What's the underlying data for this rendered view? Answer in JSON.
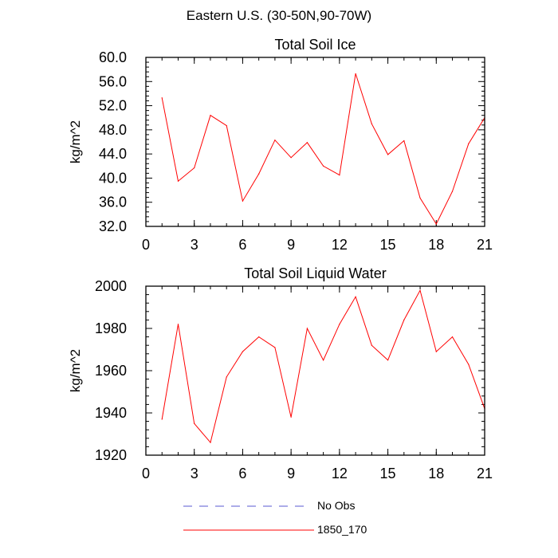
{
  "figure": {
    "main_title": "Eastern U.S. (30-50N,90-70W)"
  },
  "chart_data": [
    {
      "type": "line",
      "title": "Total Soil Ice",
      "xlabel": "",
      "ylabel": "kg/m^2",
      "xlim": [
        0,
        21
      ],
      "ylim": [
        32,
        60
      ],
      "xticks": [
        0,
        3,
        6,
        9,
        12,
        15,
        18,
        21
      ],
      "yticks": [
        32,
        36,
        40,
        44,
        48,
        52,
        56,
        60
      ],
      "ytick_decimals": 1,
      "x": [
        1,
        2,
        3,
        4,
        5,
        6,
        7,
        8,
        9,
        10,
        11,
        12,
        13,
        14,
        15,
        16,
        17,
        18,
        19,
        20,
        21
      ],
      "series": [
        {
          "name": "1850_170",
          "color": "#ff0000",
          "values": [
            53.3,
            39.5,
            41.7,
            50.4,
            48.7,
            36.2,
            40.7,
            46.3,
            43.4,
            45.9,
            42.0,
            40.5,
            57.3,
            49.0,
            43.9,
            46.2,
            36.7,
            32.4,
            37.8,
            45.7,
            50.0
          ]
        }
      ]
    },
    {
      "type": "line",
      "title": "Total Soil Liquid Water",
      "xlabel": "",
      "ylabel": "kg/m^2",
      "xlim": [
        0,
        21
      ],
      "ylim": [
        1920,
        2000
      ],
      "xticks": [
        0,
        3,
        6,
        9,
        12,
        15,
        18,
        21
      ],
      "yticks": [
        1920,
        1940,
        1960,
        1980,
        2000
      ],
      "ytick_decimals": 0,
      "x": [
        1,
        2,
        3,
        4,
        5,
        6,
        7,
        8,
        9,
        10,
        11,
        12,
        13,
        14,
        15,
        16,
        17,
        18,
        19,
        20,
        21
      ],
      "series": [
        {
          "name": "1850_170",
          "color": "#ff0000",
          "values": [
            1937,
            1982,
            1935,
            1926,
            1957,
            1969,
            1976,
            1971,
            1938,
            1980,
            1965,
            1982,
            1995,
            1972,
            1965,
            1984,
            1998,
            1969,
            1976,
            1963,
            1942
          ]
        }
      ]
    }
  ],
  "legend": [
    {
      "label": "No Obs",
      "color": "#5a5ad2",
      "dash": true
    },
    {
      "label": "1850_170",
      "color": "#ff0000",
      "dash": false
    }
  ]
}
